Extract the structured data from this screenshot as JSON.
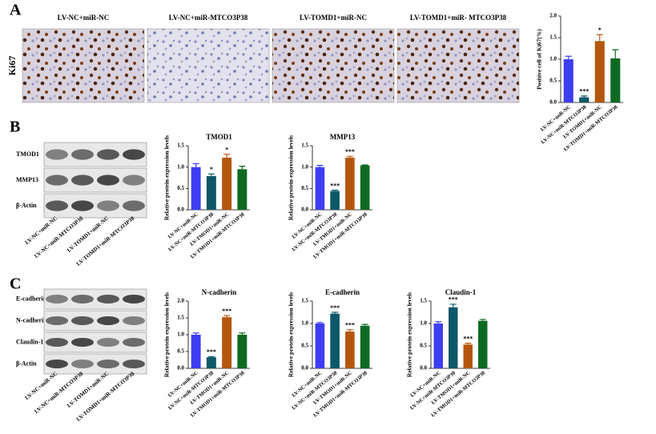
{
  "panel_labels": [
    "A",
    "B",
    "C"
  ],
  "ki67": {
    "label": "Ki67",
    "images": [
      "LV-NC+miR-NC",
      "LV-NC+miR-MTCO3P38",
      "LV-TOMD1+miR-NC",
      "LV-TOMD1+miR- MTCO3P38"
    ]
  },
  "blots": [
    {
      "rows": [
        "TMOD1",
        "MMP13",
        "β-Actin"
      ],
      "categories": [
        "LV-NC+miR-NC",
        "LV-NC+miR-MTCO3P38",
        "LV-TOMD1+miR-NC",
        "LV-TOMD1+miR-MTCO3P38"
      ]
    },
    {
      "rows": [
        "E-cadherin",
        "N-cadherin",
        "Claudin-1",
        "β-Actin"
      ],
      "categories": [
        "LV-NC+miR-NC",
        "LV-NC+miR-MTCO3P38",
        "LV-TOMD1+miR-NC",
        "LV-TOMD1+miR-MTCO3P38"
      ]
    }
  ],
  "chart_data": [
    {
      "type": "bar",
      "ylabel": "Positive cell of Ki67(%)",
      "categories": [
        "LV-NC+miR-NC",
        "LV-NC+miR-MTCO3P38",
        "LV-TOMD1+miR-NC",
        "LV-TOMD1+miR-MTCO3P38"
      ],
      "values": [
        1.0,
        0.12,
        1.42,
        1.02
      ],
      "errors": [
        0.07,
        0.03,
        0.15,
        0.2
      ],
      "annotations": [
        null,
        "***",
        "*",
        null
      ],
      "colors": [
        "#3d3df2",
        "#0d5868",
        "#b5560e",
        "#0e6a22"
      ],
      "ylim": [
        0,
        2
      ],
      "yticks": [
        {
          "value": 0,
          "label": "0.0"
        },
        0.5,
        {
          "value": 1,
          "label": "1.0"
        },
        1.5,
        {
          "value": 2,
          "label": "2.0"
        }
      ]
    },
    {
      "type": "bar",
      "title": "TMOD1",
      "ylabel": "Relative protein expression levels",
      "categories": [
        "LV-NC+miR-NC",
        "LV-NC+miR-MTCO3P38",
        "LV-TMOD1+miR-NC",
        "LV-TMOD1+miR-MTCO3P38"
      ],
      "values": [
        1.0,
        0.79,
        1.22,
        0.95
      ],
      "errors": [
        0.08,
        0.05,
        0.08,
        0.07
      ],
      "annotations": [
        null,
        "*",
        "*",
        null
      ],
      "colors": [
        "#3d3df2",
        "#0d5868",
        "#b5560e",
        "#0e6a22"
      ],
      "ylim": [
        0,
        1.5
      ],
      "yticks": [
        {
          "value": 0,
          "label": "0.0"
        },
        0.5,
        {
          "value": 1,
          "label": "1.0"
        },
        1.5
      ]
    },
    {
      "type": "bar",
      "title": "MMP13",
      "ylabel": "Relative protein expression levels",
      "categories": [
        "LV-NC+miR-NC",
        "LV-NC+miR-MTCO3P38",
        "LV-TMOD1+miR-NC",
        "LV-TMOD1+miR-MTCO3P38"
      ],
      "values": [
        1.0,
        0.44,
        1.22,
        1.04
      ],
      "errors": [
        0.04,
        0.02,
        0.03,
        0.01
      ],
      "annotations": [
        null,
        "***",
        "***",
        null
      ],
      "colors": [
        "#3d3df2",
        "#0d5868",
        "#b5560e",
        "#0e6a22"
      ],
      "ylim": [
        0,
        1.5
      ],
      "yticks": [
        {
          "value": 0,
          "label": "0.0"
        },
        0.5,
        {
          "value": 1,
          "label": "1.0"
        },
        1.5
      ]
    },
    {
      "type": "bar",
      "title": "N-cadherin",
      "ylabel": "Relative protein expression levels",
      "categories": [
        "LV-NC+miR-NC",
        "LV-NC+miR-MTCO3P38",
        "LV-TMOD1+miR-NC",
        "LV-TMOD1+miR-MTCO3P38"
      ],
      "values": [
        1.0,
        0.33,
        1.52,
        1.0
      ],
      "errors": [
        0.05,
        0.02,
        0.05,
        0.05
      ],
      "annotations": [
        null,
        "***",
        "***",
        null
      ],
      "colors": [
        "#3d3df2",
        "#0d5868",
        "#b5560e",
        "#0e6a22"
      ],
      "ylim": [
        0,
        2
      ],
      "yticks": [
        {
          "value": 0,
          "label": "0.0"
        },
        0.5,
        {
          "value": 1,
          "label": "1.0"
        },
        1.5,
        {
          "value": 2,
          "label": "2.0"
        }
      ]
    },
    {
      "type": "bar",
      "title": "E-cadherin",
      "ylabel": "Relative protein expression levels",
      "categories": [
        "LV-NC+miR-NC",
        "LV-NC+miR-MTCO3P38",
        "LV-TMOD1+miR-NC",
        "LV-TMOD1+miR-MTCO3P38"
      ],
      "values": [
        1.0,
        1.22,
        0.82,
        0.95
      ],
      "errors": [
        0.02,
        0.03,
        0.04,
        0.03
      ],
      "annotations": [
        null,
        "***",
        "***",
        null
      ],
      "colors": [
        "#3d3df2",
        "#0d5868",
        "#b5560e",
        "#0e6a22"
      ],
      "ylim": [
        0,
        1.5
      ],
      "yticks": [
        {
          "value": 0,
          "label": "0.0"
        },
        0.5,
        {
          "value": 1,
          "label": "1.0"
        },
        1.5
      ]
    },
    {
      "type": "bar",
      "title": "Claudin-1",
      "ylabel": "Relative protein expression levels",
      "categories": [
        "LV-NC+miR-NC",
        "LV-NC+miR-MTCO3P38",
        "LV-TMOD1+miR-NC",
        "LV-TMOD1+miR-MTCO3P38"
      ],
      "values": [
        1.0,
        1.36,
        0.53,
        1.06
      ],
      "errors": [
        0.04,
        0.07,
        0.03,
        0.03
      ],
      "annotations": [
        null,
        "***",
        "***",
        null
      ],
      "colors": [
        "#3d3df2",
        "#0d5868",
        "#b5560e",
        "#0e6a22"
      ],
      "ylim": [
        0,
        1.5
      ],
      "yticks": [
        {
          "value": 0,
          "label": "0.0"
        },
        0.5,
        {
          "value": 1,
          "label": "1.0"
        },
        1.5
      ]
    }
  ]
}
